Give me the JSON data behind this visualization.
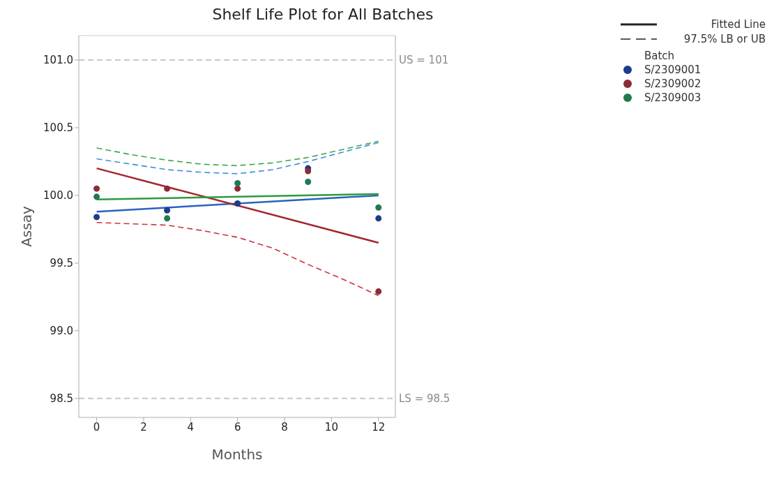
{
  "chart_data": {
    "type": "scatter",
    "title": "Shelf Life Plot for All Batches",
    "xlabel": "Months",
    "ylabel": "Assay",
    "legend_title": "Batch",
    "xlim": [
      -0.76,
      12.72
    ],
    "xticks": [
      0,
      2,
      4,
      6,
      8,
      10,
      12
    ],
    "ylim": [
      98.36,
      101.18
    ],
    "yticks": [
      98.5,
      {
        "value": 99,
        "label": "99.0"
      },
      99.5,
      {
        "value": 100,
        "label": "100.0"
      },
      100.5,
      {
        "value": 101,
        "label": "101.0"
      }
    ],
    "grid": false,
    "legend": "top right",
    "annotations": [
      "Fitted Line",
      "97.5% LB or UB"
    ],
    "ref_lines": [
      {
        "axis": "y",
        "value": 101,
        "label": "US = 101",
        "color": "#c8c8c8",
        "line_style": "dashed"
      },
      {
        "axis": "y",
        "value": 98.5,
        "label": "LS = 98.5",
        "color": "#c8c8c8",
        "line_style": "dashed"
      }
    ],
    "series": [
      {
        "type": "line",
        "color": "#2a62c0",
        "x": [
          0,
          12
        ],
        "values": [
          99.88,
          100.0
        ],
        "line_style": "solid",
        "marker": "none"
      },
      {
        "type": "line",
        "color": "#a4282f",
        "x": [
          0,
          12
        ],
        "values": [
          100.2,
          99.65
        ],
        "line_style": "solid",
        "marker": "none"
      },
      {
        "type": "line",
        "color": "#2e9a3c",
        "x": [
          0,
          12
        ],
        "values": [
          99.97,
          100.01
        ],
        "line_style": "solid",
        "marker": "none"
      },
      {
        "type": "line",
        "color": "#3d8edb",
        "x": [
          0,
          1.5,
          3,
          4.5,
          6,
          7.5,
          9,
          10.5,
          12
        ],
        "values": [
          100.27,
          100.23,
          100.19,
          100.17,
          100.16,
          100.19,
          100.25,
          100.32,
          100.39
        ],
        "line_style": "dashed",
        "marker": "none"
      },
      {
        "type": "line",
        "color": "#c8323e",
        "x": [
          0,
          1.5,
          3,
          4.5,
          6,
          7.5,
          9,
          10.5,
          12
        ],
        "values": [
          99.8,
          99.79,
          99.78,
          99.74,
          99.69,
          99.61,
          99.49,
          99.38,
          99.26
        ],
        "line_style": "dashed",
        "marker": "none"
      },
      {
        "type": "line",
        "color": "#3da64c",
        "x": [
          0,
          1.5,
          3,
          4.5,
          6,
          7.5,
          9,
          10.5,
          12
        ],
        "values": [
          100.35,
          100.3,
          100.26,
          100.23,
          100.22,
          100.24,
          100.28,
          100.34,
          100.4
        ],
        "line_style": "dashed",
        "marker": "none"
      },
      {
        "name": "S/2309001",
        "color": "#1c3c8c",
        "x": [
          0,
          3,
          6,
          9,
          12
        ],
        "values": [
          99.84,
          99.89,
          99.94,
          100.2,
          99.83
        ],
        "marker": "circle"
      },
      {
        "name": "S/2309002",
        "color": "#8c2c36",
        "x": [
          0,
          3,
          6,
          9,
          12
        ],
        "values": [
          100.05,
          100.05,
          100.05,
          100.18,
          99.29
        ],
        "marker": "circle"
      },
      {
        "name": "S/2309003",
        "color": "#1f7a52",
        "x": [
          0,
          3,
          6,
          9,
          12
        ],
        "values": [
          99.99,
          99.83,
          100.09,
          100.1,
          99.91
        ],
        "marker": "circle"
      }
    ]
  }
}
